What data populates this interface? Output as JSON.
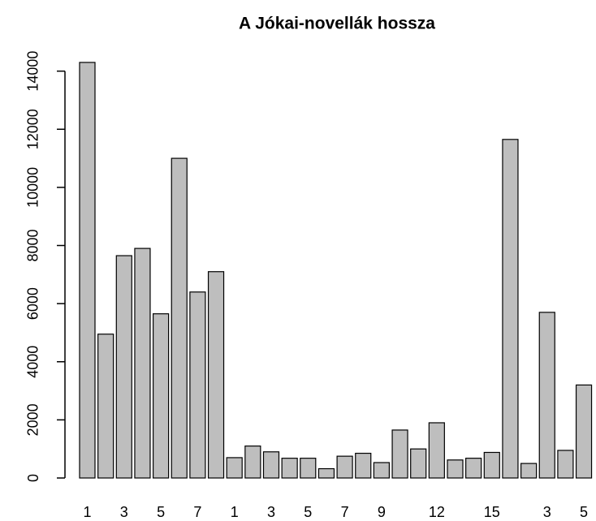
{
  "chart_data": {
    "type": "bar",
    "title": "A Jókai-novellák hossza",
    "categories": [
      "1",
      null,
      "3",
      null,
      "5",
      null,
      "7",
      null,
      "1",
      null,
      "3",
      null,
      "5",
      null,
      "7",
      null,
      "9",
      null,
      null,
      "12",
      null,
      null,
      "15",
      null,
      null,
      "3",
      null,
      "5"
    ],
    "values": [
      14300,
      4950,
      7650,
      7900,
      5650,
      11000,
      6400,
      7100,
      700,
      1100,
      900,
      680,
      680,
      320,
      750,
      850,
      530,
      1650,
      1000,
      1900,
      620,
      680,
      880,
      11650,
      500,
      5700,
      950,
      3200
    ],
    "color": "#bebebe",
    "ylim": [
      0,
      14800
    ],
    "yticks": [
      0,
      2000,
      4000,
      6000,
      8000,
      10000,
      12000,
      14000
    ],
    "grid": false
  }
}
